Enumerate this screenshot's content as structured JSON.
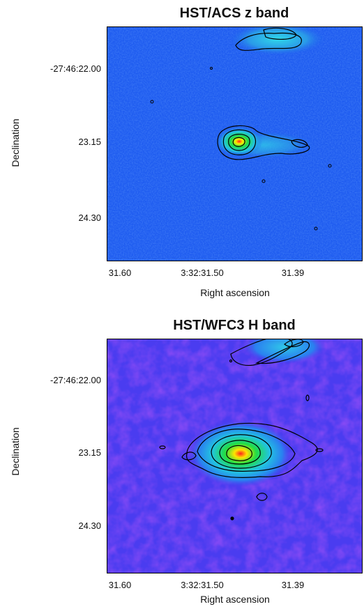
{
  "figure": {
    "panels": [
      {
        "title": "HST/ACS z band",
        "ytick_labels": [
          "-27:46:22.00",
          "23.15",
          "24.30"
        ],
        "xtick_labels": [
          "31.60",
          "3:32:31.50",
          "31.39"
        ],
        "ylabel": "Declination",
        "xlabel": "Right ascension",
        "background_color": "#1f5cf0"
      },
      {
        "title": "HST/WFC3 H band",
        "ytick_labels": [
          "-27:46:22.00",
          "23.15",
          "24.30"
        ],
        "xtick_labels": [
          "31.60",
          "3:32:31.50",
          "31.39"
        ],
        "ylabel": "Declination",
        "xlabel": "Right ascension",
        "background_color": "#4a3cf0"
      }
    ]
  }
}
